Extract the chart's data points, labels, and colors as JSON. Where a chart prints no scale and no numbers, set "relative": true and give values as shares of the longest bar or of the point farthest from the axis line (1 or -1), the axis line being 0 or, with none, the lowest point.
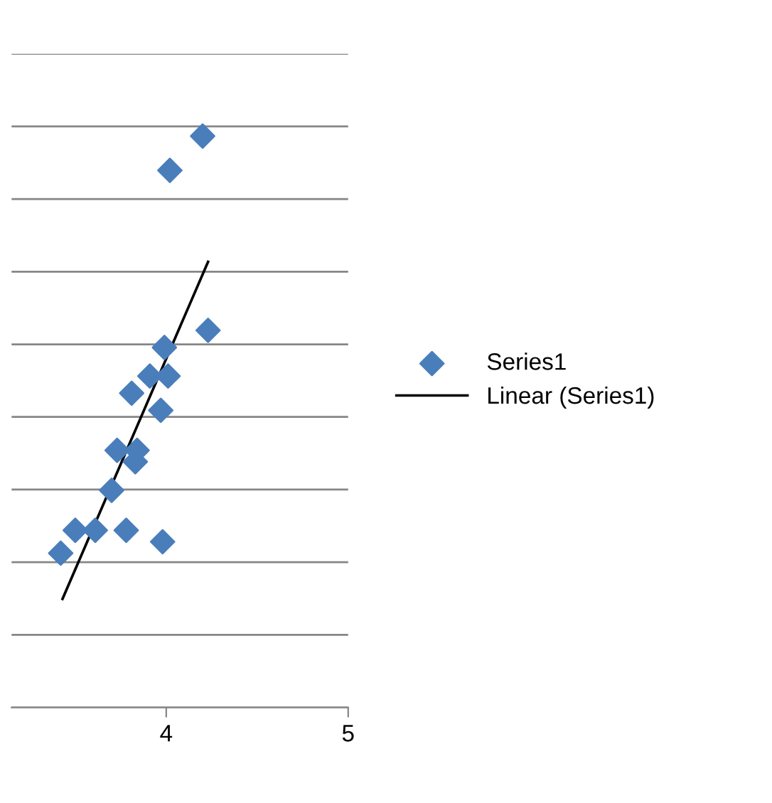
{
  "chart_data": {
    "type": "scatter",
    "relative": true,
    "xlim": [
      3.15,
      5
    ],
    "xticks": [
      4,
      5
    ],
    "grid": "y",
    "legend": "right",
    "tick_labels": "x",
    "series": [
      {
        "name": "Series1",
        "color": "#4a7ebb",
        "marker": "diamond",
        "x": [
          3.42,
          3.5,
          3.61,
          3.78,
          3.98,
          3.7,
          3.73,
          3.84,
          3.83,
          3.81,
          3.91,
          3.97,
          4.01,
          3.99,
          4.23,
          4.02,
          4.2
        ],
        "values": [
          0.27,
          0.31,
          0.31,
          0.31,
          0.29,
          0.38,
          0.45,
          0.45,
          0.43,
          0.55,
          0.58,
          0.52,
          0.58,
          0.63,
          0.66,
          0.94,
          1
        ]
      },
      {
        "name": "Linear (Series1)",
        "type": "line",
        "color": "#000000",
        "line_style": "solid",
        "x": [
          3.43,
          4.23
        ],
        "values": [
          0.19,
          0.78
        ]
      }
    ]
  }
}
